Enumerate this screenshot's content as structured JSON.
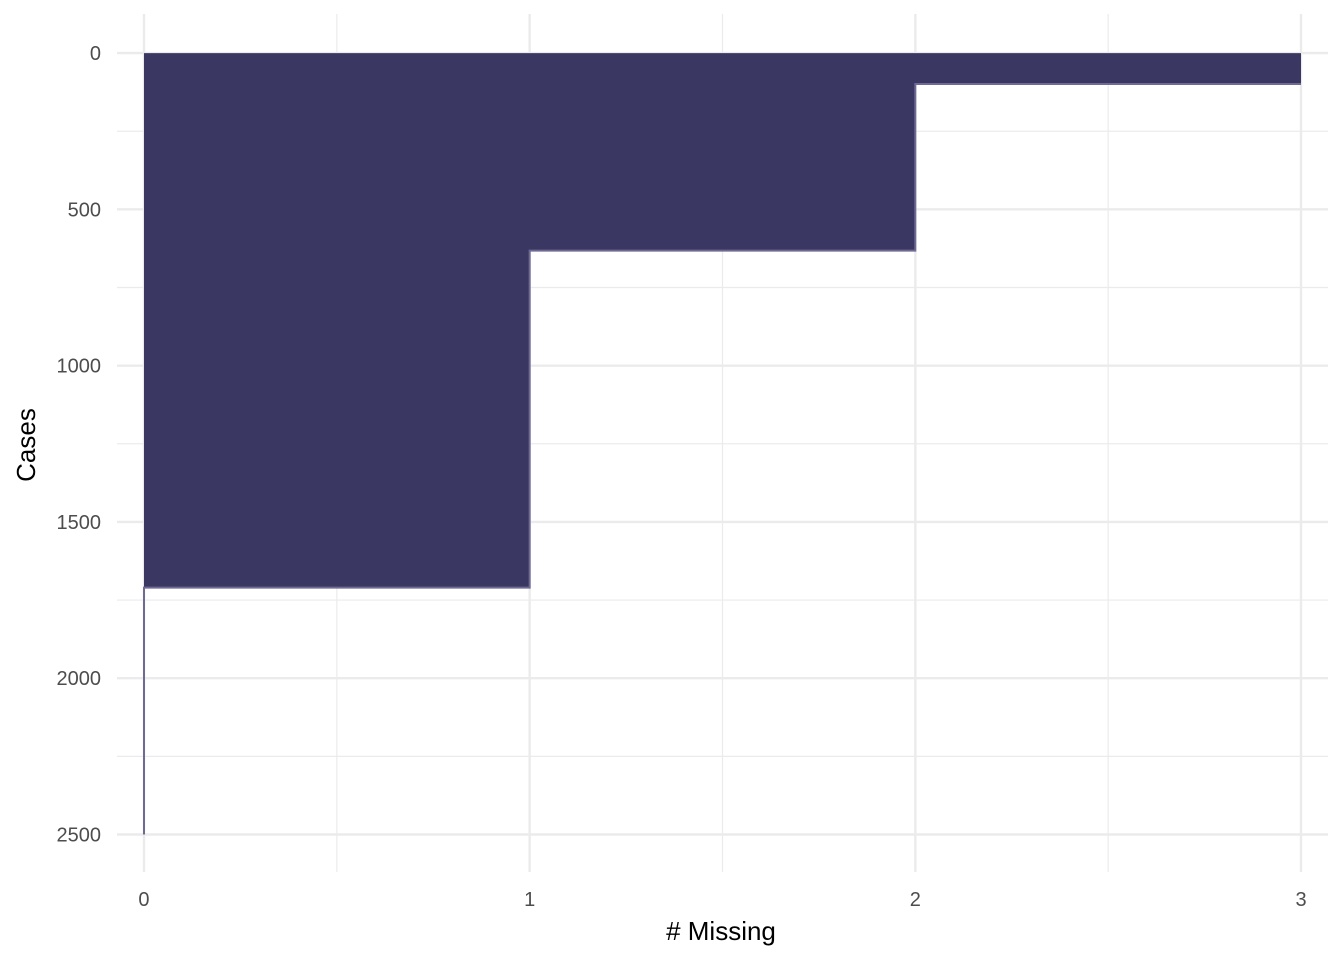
{
  "chart_data": {
    "type": "area",
    "step": "vh",
    "title": "",
    "xlabel": "# Missing",
    "ylabel": "Cases",
    "x": [
      0,
      1,
      2,
      3
    ],
    "values": [
      2500,
      1710,
      632,
      99
    ],
    "xlim": [
      -0.07,
      3.07
    ],
    "ylim": [
      2620,
      -125
    ],
    "y_reversed": true,
    "x_ticks": [
      0,
      1,
      2,
      3
    ],
    "x_tick_labels": [
      "0",
      "1",
      "2",
      "3"
    ],
    "y_ticks": [
      0,
      500,
      1000,
      1500,
      2000,
      2500
    ],
    "y_tick_labels": [
      "0",
      "500",
      "1000",
      "1500",
      "2000",
      "2500"
    ],
    "grid": true,
    "legend": "none",
    "colors": {
      "fill": "#3a3863",
      "line": "#6f6a94",
      "grid": "#ebebeb",
      "tick_text": "#4d4d4d"
    }
  }
}
